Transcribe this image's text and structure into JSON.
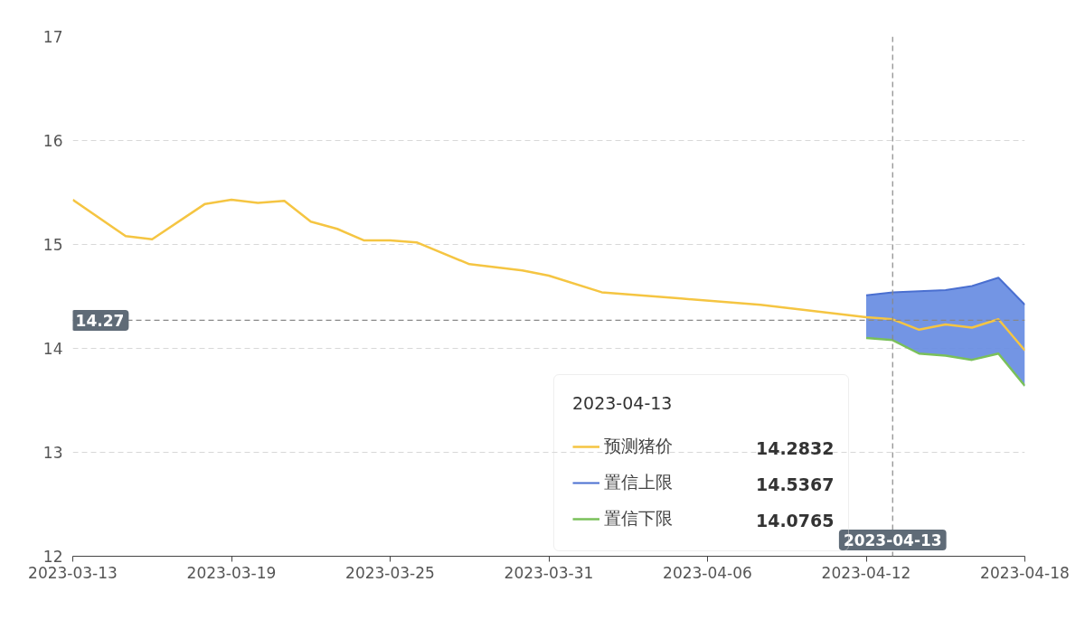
{
  "chart_data": {
    "type": "line",
    "xlim": [
      "2023-03-13",
      "2023-04-18"
    ],
    "xticks": [
      "2023-03-13",
      "2023-03-19",
      "2023-03-25",
      "2023-03-31",
      "2023-04-06",
      "2023-04-12",
      "2023-04-18"
    ],
    "ylim": [
      12,
      17
    ],
    "yticks": [
      12,
      13,
      14,
      15,
      16,
      17
    ],
    "grid": "y",
    "legend": "bottom",
    "legend_title": "2023-04-13",
    "marker": "none",
    "series": [
      {
        "name": "预测猪价",
        "color": "#f5c542",
        "x": [
          "2023-03-13",
          "2023-03-15",
          "2023-03-16",
          "2023-03-18",
          "2023-03-19",
          "2023-03-20",
          "2023-03-21",
          "2023-03-22",
          "2023-03-23",
          "2023-03-24",
          "2023-03-25",
          "2023-03-26",
          "2023-03-28",
          "2023-03-29",
          "2023-03-30",
          "2023-03-31",
          "2023-04-02",
          "2023-04-05",
          "2023-04-08",
          "2023-04-12",
          "2023-04-13",
          "2023-04-14",
          "2023-04-15",
          "2023-04-16",
          "2023-04-17",
          "2023-04-18"
        ],
        "values": [
          15.43,
          15.08,
          15.05,
          15.39,
          15.43,
          15.4,
          15.42,
          15.22,
          15.15,
          15.04,
          15.04,
          15.02,
          14.81,
          14.78,
          14.75,
          14.7,
          14.54,
          14.48,
          14.42,
          14.3,
          14.28,
          14.18,
          14.23,
          14.2,
          14.28,
          13.98
        ]
      },
      {
        "name": "置信上限",
        "type": "area",
        "color": "#4a6fd0",
        "x": [
          "2023-04-12",
          "2023-04-13",
          "2023-04-14",
          "2023-04-15",
          "2023-04-16",
          "2023-04-17",
          "2023-04-18"
        ],
        "values": [
          14.51,
          14.54,
          14.55,
          14.56,
          14.6,
          14.68,
          14.42
        ]
      },
      {
        "name": "置信下限",
        "type": "line",
        "color": "#7ac05a",
        "x": [
          "2023-04-12",
          "2023-04-13",
          "2023-04-14",
          "2023-04-15",
          "2023-04-16",
          "2023-04-17",
          "2023-04-18"
        ],
        "values": [
          14.1,
          14.08,
          13.95,
          13.93,
          13.89,
          13.95,
          13.64
        ]
      }
    ],
    "ref_lines": [
      {
        "axis": "x",
        "value": "2023-04-13",
        "label": "2023-04-13",
        "line_style": "dashed",
        "color": "#888888"
      },
      {
        "axis": "y",
        "value": 14.27,
        "label": "14.27",
        "line_style": "dashed",
        "color": "#888888"
      }
    ],
    "annotations": [
      "14.2832",
      "14.5367",
      "14.0765"
    ]
  }
}
